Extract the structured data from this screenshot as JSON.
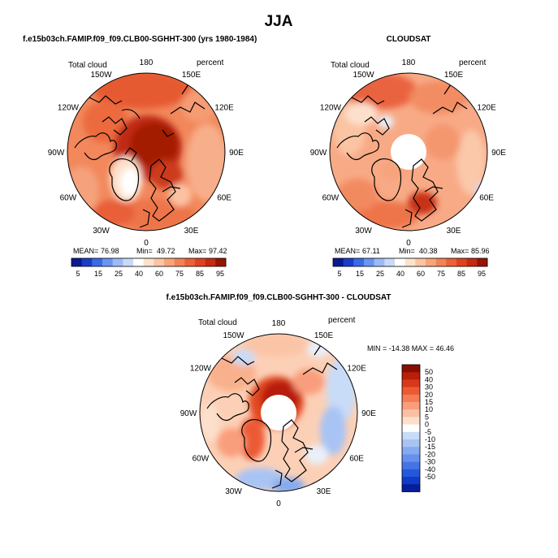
{
  "page": {
    "title": "JJA"
  },
  "panels": [
    {
      "id": "model",
      "title": "f.e15b03ch.FAMIP.f09_f09.CLB00-SGHHT-300 (yrs 1980-1984)",
      "variable": "Total cloud",
      "units": "percent",
      "stats": {
        "mean_label": "MEAN=",
        "mean": "76.98",
        "min_label": "Min=",
        "min": "49.72",
        "max_label": "Max=",
        "max": "97.42"
      },
      "pole_hole": false
    },
    {
      "id": "cloudsat",
      "title": "CLOUDSAT",
      "variable": "Total cloud",
      "units": "percent",
      "stats": {
        "mean_label": "MEAN=",
        "mean": "67.11",
        "min_label": "Min=",
        "min": "40.38",
        "max_label": "Max=",
        "max": "85.96"
      },
      "pole_hole": true
    },
    {
      "id": "diff",
      "title": "f.e15b03ch.FAMIP.f09_f09.CLB00-SGHHT-300 - CLOUDSAT",
      "variable": "Total cloud",
      "units": "percent",
      "stats_text": "MIN = -14.38 MAX =  46.46",
      "pole_hole": true
    }
  ],
  "longitude_labels": [
    "180",
    "150E",
    "120E",
    "90E",
    "60E",
    "30E",
    "0",
    "30W",
    "60W",
    "90W",
    "120W",
    "150W"
  ],
  "colorbars": {
    "absolute": {
      "colors": [
        "#0a1a90",
        "#1a3ec8",
        "#3a6ae6",
        "#6a94f2",
        "#9cbaf6",
        "#c8daf8",
        "#ffffff",
        "#fde2cc",
        "#fbc4a2",
        "#f8a478",
        "#f38256",
        "#ec6036",
        "#e0421e",
        "#c62a10",
        "#961404"
      ],
      "tick_labels": [
        "5",
        "15",
        "25",
        "40",
        "60",
        "75",
        "85",
        "95"
      ]
    },
    "difference": {
      "colors": [
        "#880e02",
        "#b81e08",
        "#d8381a",
        "#ec5a34",
        "#f57c56",
        "#f99e7c",
        "#fbc0a4",
        "#fde0cc",
        "#ffffff",
        "#c8dcf8",
        "#a8c4f4",
        "#86aaf0",
        "#6690ec",
        "#4474e6",
        "#2458dc",
        "#103ac8",
        "#061e9a"
      ],
      "tick_labels": [
        "50",
        "40",
        "30",
        "20",
        "15",
        "10",
        "5",
        "0",
        "-5",
        "-10",
        "-15",
        "-20",
        "-30",
        "-40",
        "-50"
      ]
    }
  },
  "colors": {
    "land_outline": "#000000",
    "map_edge": "#000000"
  }
}
